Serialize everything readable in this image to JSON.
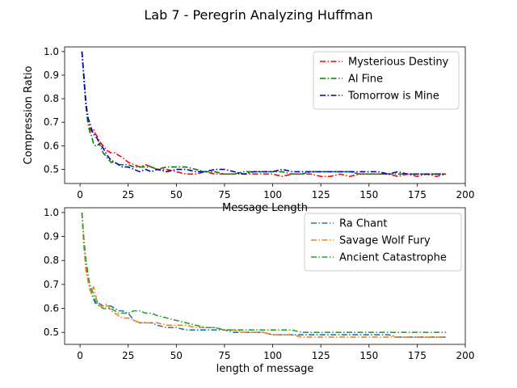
{
  "figure": {
    "suptitle": "Lab 7 - Peregrin Analyzing Huffman"
  },
  "chart_data": [
    {
      "type": "line",
      "title": "",
      "xlabel": "Message Length",
      "ylabel": "Compression Ratio",
      "xlim": [
        -8,
        200
      ],
      "ylim": [
        0.44,
        1.02
      ],
      "xticks": [
        0,
        25,
        50,
        75,
        100,
        125,
        150,
        175,
        200
      ],
      "yticks": [
        0.5,
        0.6,
        0.7,
        0.8,
        0.9,
        1.0
      ],
      "grid": false,
      "legend_position": "upper-right",
      "series": [
        {
          "name": "Mysterious Destiny",
          "color": "#ff0000",
          "x": [
            1,
            2,
            3,
            4,
            5,
            6,
            7,
            8,
            9,
            10,
            12,
            14,
            16,
            18,
            20,
            22,
            25,
            28,
            31,
            34,
            37,
            40,
            45,
            50,
            55,
            60,
            65,
            70,
            75,
            80,
            85,
            90,
            95,
            100,
            105,
            110,
            115,
            120,
            125,
            130,
            135,
            140,
            145,
            150,
            155,
            160,
            165,
            170,
            175,
            180,
            185,
            190
          ],
          "y": [
            1.0,
            0.89,
            0.78,
            0.73,
            0.68,
            0.66,
            0.67,
            0.65,
            0.64,
            0.62,
            0.6,
            0.58,
            0.57,
            0.57,
            0.56,
            0.55,
            0.53,
            0.52,
            0.51,
            0.52,
            0.51,
            0.5,
            0.5,
            0.49,
            0.48,
            0.48,
            0.49,
            0.48,
            0.48,
            0.48,
            0.48,
            0.48,
            0.48,
            0.48,
            0.47,
            0.48,
            0.48,
            0.48,
            0.47,
            0.47,
            0.48,
            0.47,
            0.48,
            0.48,
            0.48,
            0.48,
            0.47,
            0.48,
            0.47,
            0.48,
            0.47,
            0.48
          ]
        },
        {
          "name": "Al Fine",
          "color": "#008000",
          "x": [
            1,
            2,
            3,
            4,
            5,
            6,
            7,
            8,
            9,
            10,
            12,
            14,
            16,
            18,
            20,
            22,
            25,
            28,
            31,
            34,
            37,
            40,
            45,
            50,
            55,
            60,
            65,
            70,
            75,
            80,
            85,
            90,
            95,
            100,
            105,
            110,
            115,
            120,
            125,
            130,
            135,
            140,
            145,
            150,
            155,
            160,
            165,
            170,
            175,
            180,
            185,
            190
          ],
          "y": [
            1.0,
            0.88,
            0.77,
            0.7,
            0.66,
            0.64,
            0.61,
            0.6,
            0.6,
            0.61,
            0.57,
            0.55,
            0.53,
            0.53,
            0.52,
            0.52,
            0.52,
            0.51,
            0.51,
            0.51,
            0.51,
            0.5,
            0.51,
            0.51,
            0.51,
            0.5,
            0.49,
            0.49,
            0.48,
            0.48,
            0.49,
            0.49,
            0.49,
            0.49,
            0.49,
            0.48,
            0.48,
            0.49,
            0.49,
            0.49,
            0.49,
            0.49,
            0.48,
            0.48,
            0.48,
            0.48,
            0.48,
            0.48,
            0.48,
            0.48,
            0.48,
            0.48
          ]
        },
        {
          "name": "Tomorrow is Mine",
          "color": "#0000cc",
          "x": [
            1,
            2,
            3,
            4,
            5,
            6,
            7,
            8,
            9,
            10,
            12,
            14,
            16,
            18,
            20,
            22,
            25,
            28,
            31,
            34,
            37,
            40,
            45,
            50,
            55,
            60,
            65,
            70,
            75,
            80,
            85,
            90,
            95,
            100,
            105,
            110,
            115,
            120,
            125,
            130,
            135,
            140,
            145,
            150,
            155,
            160,
            165,
            170,
            175,
            180,
            185,
            190
          ],
          "y": [
            1.0,
            0.9,
            0.79,
            0.72,
            0.7,
            0.67,
            0.65,
            0.64,
            0.63,
            0.61,
            0.59,
            0.56,
            0.54,
            0.53,
            0.52,
            0.51,
            0.51,
            0.5,
            0.49,
            0.5,
            0.49,
            0.5,
            0.49,
            0.5,
            0.5,
            0.49,
            0.49,
            0.5,
            0.5,
            0.49,
            0.48,
            0.49,
            0.49,
            0.49,
            0.5,
            0.49,
            0.49,
            0.49,
            0.49,
            0.49,
            0.49,
            0.49,
            0.49,
            0.49,
            0.49,
            0.48,
            0.49,
            0.48,
            0.48,
            0.48,
            0.48,
            0.48
          ]
        }
      ]
    },
    {
      "type": "line",
      "title": "",
      "xlabel": "length of message",
      "ylabel": "",
      "xlim": [
        -8,
        200
      ],
      "ylim": [
        0.45,
        1.02
      ],
      "xticks": [
        0,
        25,
        50,
        75,
        100,
        125,
        150,
        175,
        200
      ],
      "yticks": [
        0.5,
        0.6,
        0.7,
        0.8,
        0.9,
        1.0
      ],
      "grid": false,
      "legend_position": "upper-right",
      "series": [
        {
          "name": "Ra Chant",
          "color": "#1f77b4",
          "x": [
            1,
            2,
            3,
            4,
            5,
            6,
            7,
            8,
            9,
            10,
            12,
            14,
            16,
            18,
            20,
            22,
            25,
            28,
            31,
            34,
            37,
            40,
            45,
            50,
            55,
            60,
            65,
            70,
            75,
            80,
            85,
            90,
            95,
            100,
            105,
            110,
            115,
            120,
            125,
            130,
            135,
            140,
            145,
            150,
            155,
            160,
            165,
            170,
            175,
            180,
            185,
            190
          ],
          "y": [
            1.0,
            0.86,
            0.78,
            0.73,
            0.69,
            0.66,
            0.64,
            0.62,
            0.63,
            0.62,
            0.61,
            0.61,
            0.61,
            0.6,
            0.59,
            0.59,
            0.58,
            0.55,
            0.54,
            0.54,
            0.54,
            0.53,
            0.52,
            0.52,
            0.51,
            0.51,
            0.51,
            0.51,
            0.51,
            0.5,
            0.5,
            0.5,
            0.5,
            0.49,
            0.49,
            0.49,
            0.49,
            0.49,
            0.49,
            0.49,
            0.49,
            0.49,
            0.49,
            0.49,
            0.49,
            0.49,
            0.48,
            0.48,
            0.48,
            0.48,
            0.48,
            0.48
          ]
        },
        {
          "name": "Savage Wolf Fury",
          "color": "#ff7f0e",
          "x": [
            1,
            2,
            3,
            4,
            5,
            6,
            7,
            8,
            9,
            10,
            12,
            14,
            16,
            18,
            20,
            22,
            25,
            28,
            31,
            34,
            37,
            40,
            45,
            50,
            55,
            60,
            65,
            70,
            75,
            80,
            85,
            90,
            95,
            100,
            105,
            110,
            115,
            120,
            125,
            130,
            135,
            140,
            145,
            150,
            155,
            160,
            165,
            170,
            175,
            180,
            185,
            190
          ],
          "y": [
            1.0,
            0.86,
            0.76,
            0.72,
            0.68,
            0.66,
            0.69,
            0.66,
            0.62,
            0.61,
            0.61,
            0.62,
            0.59,
            0.58,
            0.57,
            0.56,
            0.56,
            0.55,
            0.54,
            0.54,
            0.54,
            0.54,
            0.53,
            0.53,
            0.53,
            0.52,
            0.52,
            0.52,
            0.51,
            0.51,
            0.5,
            0.5,
            0.5,
            0.49,
            0.49,
            0.49,
            0.48,
            0.48,
            0.48,
            0.48,
            0.48,
            0.48,
            0.48,
            0.48,
            0.48,
            0.48,
            0.48,
            0.48,
            0.48,
            0.48,
            0.48,
            0.48
          ]
        },
        {
          "name": "Ancient Catastrophe",
          "color": "#2ca02c",
          "x": [
            1,
            2,
            3,
            4,
            5,
            6,
            7,
            8,
            9,
            10,
            12,
            14,
            16,
            18,
            20,
            22,
            25,
            28,
            31,
            34,
            37,
            40,
            45,
            50,
            55,
            60,
            65,
            70,
            75,
            80,
            85,
            90,
            95,
            100,
            105,
            110,
            115,
            120,
            125,
            130,
            135,
            140,
            145,
            150,
            155,
            160,
            165,
            170,
            175,
            180,
            185,
            190
          ],
          "y": [
            1.0,
            0.89,
            0.81,
            0.75,
            0.7,
            0.68,
            0.66,
            0.63,
            0.62,
            0.61,
            0.6,
            0.6,
            0.6,
            0.59,
            0.58,
            0.58,
            0.58,
            0.59,
            0.59,
            0.58,
            0.58,
            0.57,
            0.56,
            0.55,
            0.54,
            0.53,
            0.52,
            0.52,
            0.51,
            0.51,
            0.51,
            0.51,
            0.51,
            0.51,
            0.51,
            0.51,
            0.5,
            0.5,
            0.5,
            0.5,
            0.5,
            0.5,
            0.5,
            0.5,
            0.5,
            0.5,
            0.5,
            0.5,
            0.5,
            0.5,
            0.5,
            0.5
          ]
        }
      ]
    }
  ]
}
